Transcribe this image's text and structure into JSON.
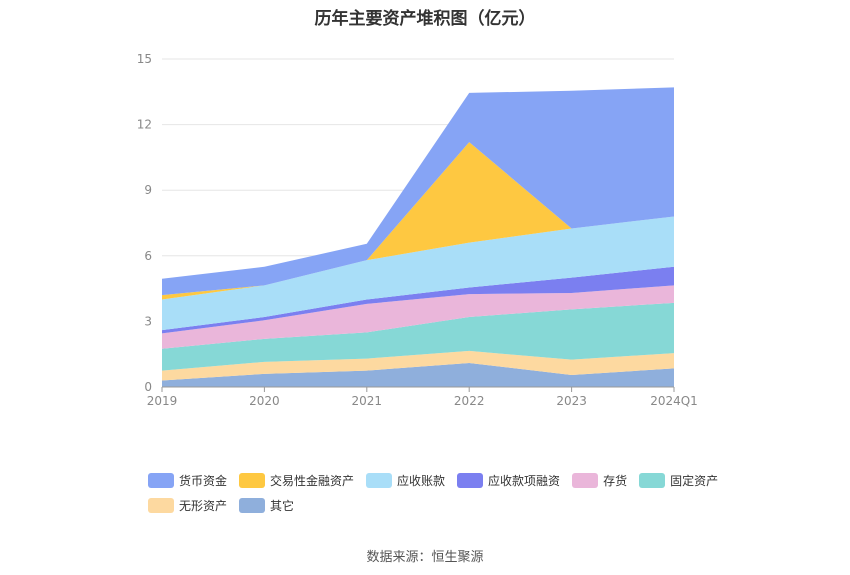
{
  "chart_data": {
    "type": "area",
    "title": "历年主要资产堆积图（亿元）",
    "categories": [
      "2019",
      "2020",
      "2021",
      "2022",
      "2023",
      "2024Q1"
    ],
    "y_ticks": [
      "0",
      "3",
      "6",
      "9",
      "12",
      "15"
    ],
    "ylim": [
      0,
      15
    ],
    "stacked": true,
    "grid": true,
    "legend_position": "bottom",
    "series": [
      {
        "name": "其它",
        "color": "#8fafdc",
        "values": [
          0.3,
          0.6,
          0.75,
          1.1,
          0.55,
          0.85
        ]
      },
      {
        "name": "无形资产",
        "color": "#fdd9a0",
        "values": [
          0.45,
          0.55,
          0.55,
          0.55,
          0.7,
          0.7
        ]
      },
      {
        "name": "固定资产",
        "color": "#86d8d6",
        "values": [
          1.0,
          1.05,
          1.2,
          1.55,
          2.3,
          2.3
        ]
      },
      {
        "name": "存货",
        "color": "#eab6da",
        "values": [
          0.7,
          0.85,
          1.3,
          1.05,
          0.75,
          0.8
        ]
      },
      {
        "name": "应收款项融资",
        "color": "#7b7ff0",
        "values": [
          0.15,
          0.15,
          0.2,
          0.3,
          0.7,
          0.85
        ]
      },
      {
        "name": "应收账款",
        "color": "#a9def8",
        "values": [
          1.4,
          1.45,
          1.8,
          2.05,
          2.25,
          2.3
        ]
      },
      {
        "name": "交易性金融资产",
        "color": "#fec841",
        "values": [
          0.2,
          0.0,
          0.0,
          4.6,
          0.0,
          0.0
        ]
      },
      {
        "name": "货币资金",
        "color": "#86a4f5",
        "values": [
          0.75,
          0.85,
          0.75,
          2.25,
          6.3,
          5.9
        ]
      }
    ],
    "legend_order": [
      "货币资金",
      "交易性金融资产",
      "应收账款",
      "应收款项融资",
      "存货",
      "固定资产",
      "无形资产",
      "其它"
    ]
  },
  "source": "数据来源：恒生聚源"
}
